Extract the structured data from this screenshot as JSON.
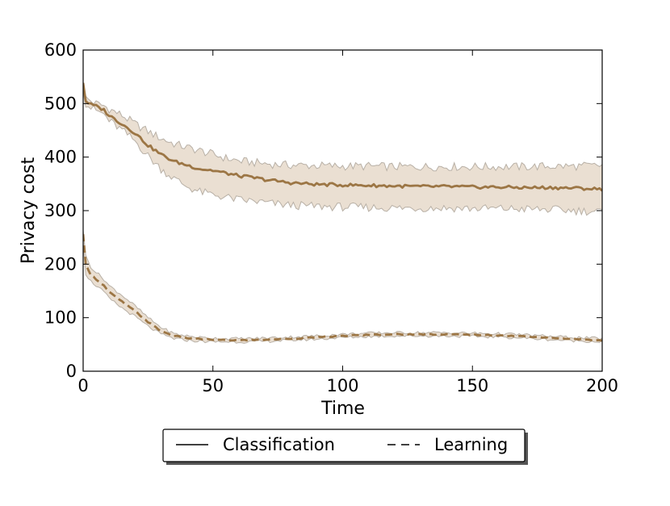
{
  "chart_data": {
    "type": "line",
    "title": "",
    "xlabel": "Time",
    "ylabel": "Privacy cost",
    "xlim": [
      0,
      200
    ],
    "ylim": [
      0,
      600
    ],
    "x_ticks": [
      "0",
      "50",
      "100",
      "150",
      "200"
    ],
    "y_ticks": [
      "0",
      "100",
      "200",
      "300",
      "400",
      "500",
      "600"
    ],
    "grid": false,
    "legend_position": "bottom-outside",
    "legend": [
      {
        "label": "Classification",
        "style": "solid"
      },
      {
        "label": "Learning",
        "style": "dashed"
      }
    ],
    "colors": {
      "line": "#9c7645",
      "band_fill": "#e8dccd",
      "band_edge": "#b8b0a6"
    },
    "series": [
      {
        "name": "Classification",
        "style": "solid",
        "x": [
          0,
          1,
          3,
          5,
          8,
          10,
          15,
          20,
          25,
          30,
          35,
          40,
          45,
          50,
          55,
          60,
          65,
          70,
          75,
          80,
          90,
          100,
          110,
          120,
          130,
          140,
          150,
          160,
          170,
          180,
          190,
          200
        ],
        "mean": [
          540,
          505,
          498,
          495,
          488,
          478,
          462,
          445,
          422,
          405,
          392,
          385,
          378,
          375,
          370,
          365,
          362,
          358,
          355,
          352,
          349,
          348,
          347,
          346,
          345,
          345,
          344,
          344,
          343,
          343,
          342,
          340
        ],
        "upper": [
          545,
          510,
          505,
          500,
          496,
          490,
          478,
          462,
          448,
          435,
          425,
          418,
          412,
          405,
          398,
          393,
          390,
          388,
          386,
          385,
          384,
          383,
          383,
          382,
          382,
          382,
          382,
          382,
          382,
          383,
          383,
          384
        ],
        "lower": [
          530,
          500,
          492,
          487,
          480,
          468,
          450,
          430,
          402,
          378,
          360,
          345,
          335,
          330,
          325,
          320,
          318,
          315,
          312,
          310,
          308,
          307,
          306,
          305,
          305,
          305,
          304,
          304,
          303,
          302,
          300,
          298
        ]
      },
      {
        "name": "Learning",
        "style": "dashed",
        "x": [
          0,
          1,
          3,
          5,
          8,
          10,
          15,
          20,
          25,
          30,
          35,
          40,
          45,
          50,
          55,
          60,
          65,
          70,
          75,
          80,
          90,
          100,
          110,
          120,
          130,
          140,
          150,
          160,
          170,
          180,
          190,
          200
        ],
        "mean": [
          255,
          200,
          180,
          172,
          160,
          148,
          130,
          112,
          92,
          75,
          66,
          62,
          60,
          59,
          58,
          58,
          58,
          59,
          60,
          61,
          63,
          66,
          68,
          69,
          69,
          69,
          68,
          67,
          65,
          62,
          60,
          58
        ],
        "upper": [
          265,
          215,
          195,
          185,
          172,
          160,
          142,
          122,
          100,
          82,
          70,
          66,
          63,
          62,
          61,
          61,
          61,
          62,
          63,
          64,
          66,
          69,
          71,
          72,
          72,
          72,
          71,
          70,
          68,
          65,
          63,
          61
        ],
        "lower": [
          240,
          182,
          168,
          160,
          148,
          136,
          118,
          102,
          84,
          69,
          61,
          58,
          56,
          55,
          55,
          55,
          55,
          56,
          57,
          58,
          60,
          63,
          65,
          66,
          66,
          66,
          65,
          64,
          62,
          59,
          57,
          55
        ]
      }
    ]
  }
}
